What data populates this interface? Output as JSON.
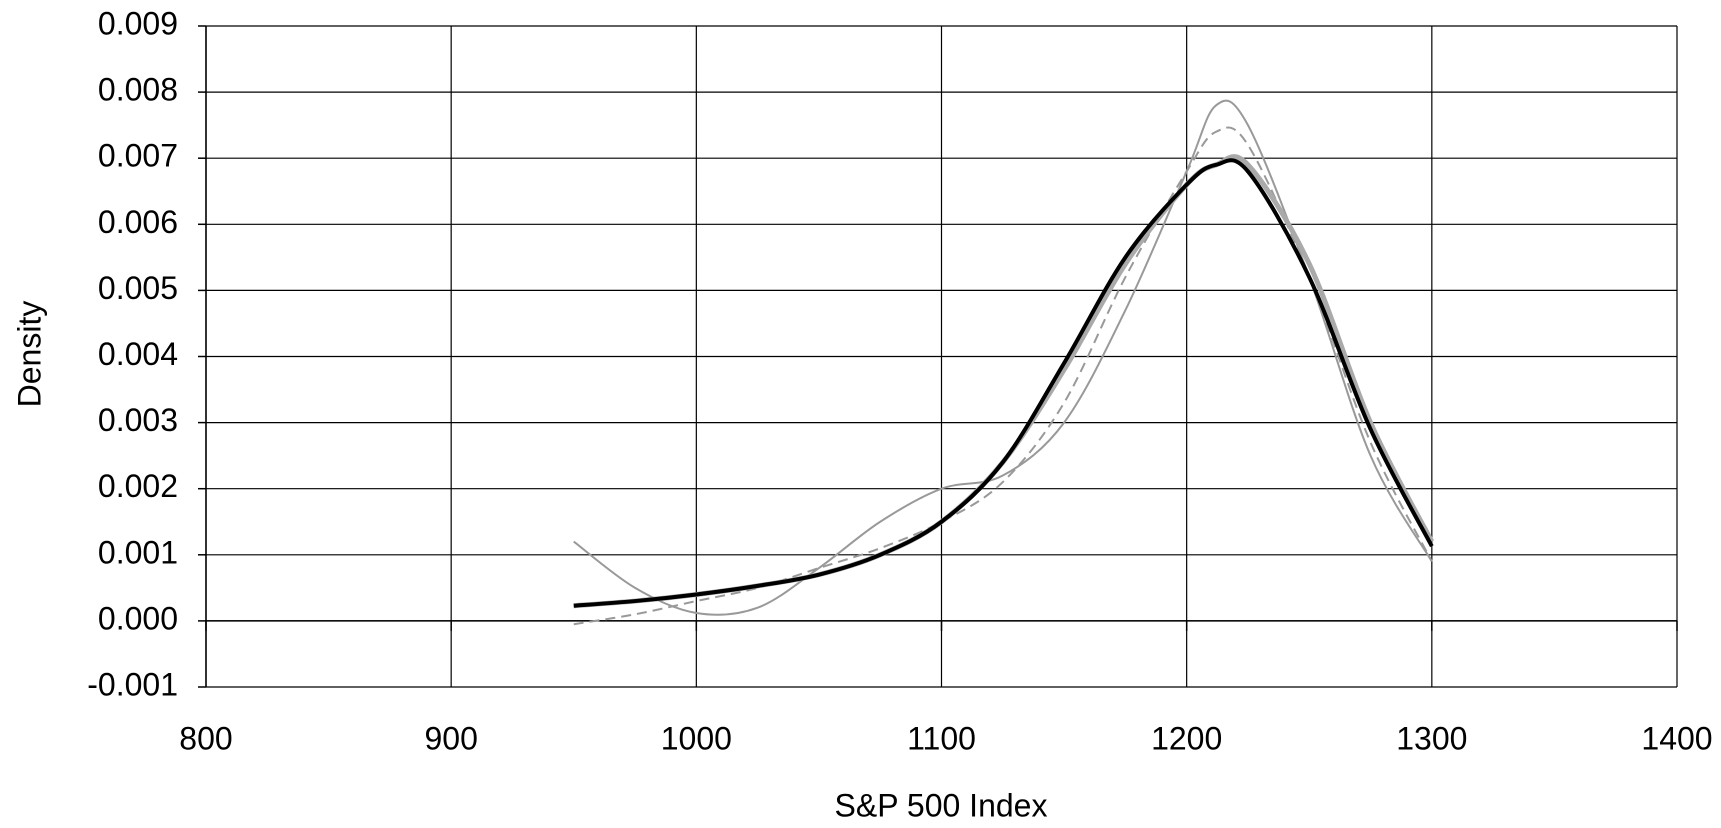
{
  "chart_data": {
    "type": "line",
    "x_label": "S&P 500 Index",
    "y_label": "Density",
    "xlim": [
      800,
      1400
    ],
    "xticks": [
      800,
      900,
      1000,
      1100,
      1200,
      1300,
      1400
    ],
    "ylim": [
      -0.001,
      0.009
    ],
    "yticks": [
      -0.001,
      {
        "value": 0,
        "label": "0.000"
      },
      0.001,
      0.002,
      0.003,
      0.004,
      0.005,
      0.006,
      0.007,
      0.008,
      0.009
    ],
    "grid": true,
    "x": [
      950,
      975,
      1000,
      1025,
      1050,
      1075,
      1100,
      1125,
      1150,
      1175,
      1200,
      1212,
      1225,
      1250,
      1275,
      1300
    ],
    "series": [
      {
        "color": "#999999",
        "linestyle": "solid",
        "linewidth": 2,
        "values": [
          0.0012,
          0.0005,
          0.00012,
          0.0002,
          0.0008,
          0.0015,
          0.002,
          0.0022,
          0.003,
          0.0047,
          0.0068,
          0.0078,
          0.0075,
          0.0052,
          0.0025,
          0.0009
        ]
      },
      {
        "color": "#999999",
        "linestyle": "dashed",
        "linewidth": 2,
        "values": [
          -5e-05,
          0.0001,
          0.0003,
          0.0005,
          0.0008,
          0.0011,
          0.0015,
          0.0021,
          0.0033,
          0.0052,
          0.0068,
          0.0074,
          0.0072,
          0.0052,
          0.0027,
          0.0009
        ]
      },
      {
        "color": "#aaaaaa",
        "linestyle": "solid",
        "linewidth": 5,
        "values": [
          0.00023,
          0.0003,
          0.0004,
          0.00053,
          0.0007,
          0.001,
          0.0015,
          0.0024,
          0.0038,
          0.0054,
          0.0066,
          0.0069,
          0.0069,
          0.0054,
          0.003,
          0.0012
        ]
      },
      {
        "color": "#000000",
        "linestyle": "solid",
        "linewidth": 4,
        "values": [
          0.00023,
          0.0003,
          0.0004,
          0.00053,
          0.0007,
          0.001,
          0.0015,
          0.0024,
          0.0039,
          0.0055,
          0.0066,
          0.0069,
          0.0068,
          0.0052,
          0.0029,
          0.00113
        ]
      }
    ]
  }
}
